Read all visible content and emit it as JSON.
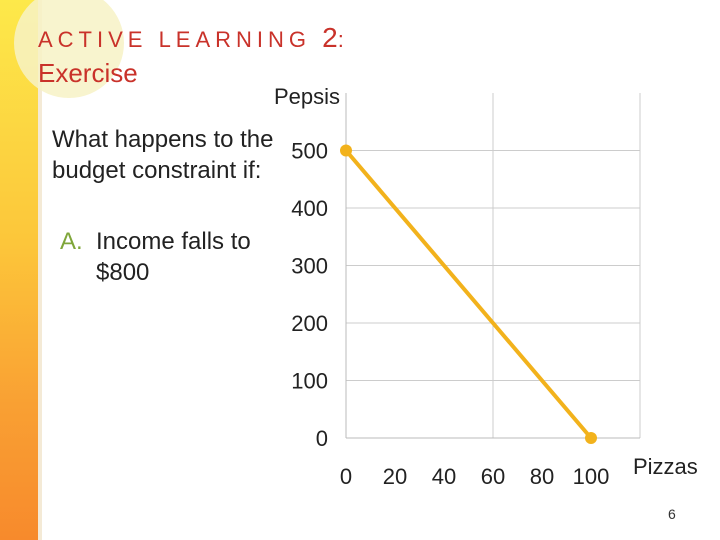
{
  "slide": {
    "title_prefix": "ACTIVE LEARNING",
    "title_number": "2",
    "title_colon": ":",
    "subtitle": "Exercise",
    "question": "What happens to the budget constraint if:",
    "item_letter": "A.",
    "item_text": "Income falls to $800",
    "page_number": "6"
  },
  "colors": {
    "accent": "#c9322a",
    "line": "#f2b21c",
    "letter": "#7fa63a"
  },
  "chart_data": {
    "type": "line",
    "title": "",
    "xlabel": "Pizzas",
    "ylabel": "Pepsis",
    "x_ticks": [
      0,
      20,
      40,
      60,
      80,
      100
    ],
    "y_ticks": [
      0,
      100,
      200,
      300,
      400,
      500
    ],
    "xlim": [
      0,
      120
    ],
    "ylim": [
      0,
      600
    ],
    "grid": true,
    "series": [
      {
        "x": [
          0,
          100
        ],
        "y": [
          500,
          0
        ]
      }
    ]
  }
}
